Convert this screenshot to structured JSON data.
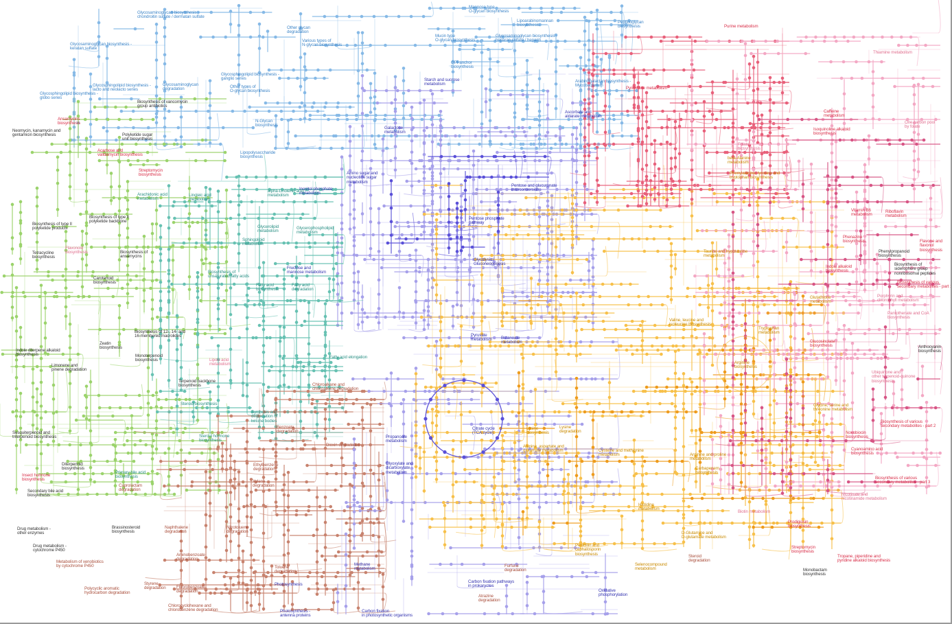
{
  "title": "",
  "colors": {
    "glycan": "#86b9e6",
    "carbohydrate": "#a6a0ea",
    "carbohydrate_core": "#5a50d8",
    "terpenoid": "#9bd36c",
    "lipid": "#67c1b2",
    "xenobiotic": "#c7826e",
    "amino_acid": "#f7c04a",
    "amino_acid_core": "#ee9b1c",
    "nucleotide": "#e8607a",
    "cofactor": "#f3a8c4",
    "secondary": "#d75585",
    "label_glycan": "#3f86c8",
    "label_carbohydrate": "#3434b0",
    "label_lipid": "#2b9085",
    "label_terpenoid": "#333333",
    "label_xenobiotic": "#a94f3c",
    "label_amino": "#c98a00",
    "label_nucleotide": "#d9304a",
    "label_cofactor": "#e0708f"
  },
  "labels": [
    {
      "text": "Glycosaminoglycan biosynthesis -\nchondroitin sulfate / dermatan sulfate",
      "group": "glycan"
    },
    {
      "text": "Glycosaminoglycan biosynthesis -\nkeratan sulfate",
      "group": "glycan"
    },
    {
      "text": "Glycosphingolipid biosynthesis -\nlacto and neolacto series",
      "group": "glycan"
    },
    {
      "text": "Glycosphingolipid biosynthesis -\nglobo series",
      "group": "glycan"
    },
    {
      "text": "Glycosaminoglycan\ndegradation",
      "group": "glycan"
    },
    {
      "text": "Glycosphingolipid biosynthesis -\nganglio series",
      "group": "glycan"
    },
    {
      "text": "Other types of\nO-glycan biosynthesis",
      "group": "glycan"
    },
    {
      "text": "Other glycan\ndegradation",
      "group": "glycan"
    },
    {
      "text": "Various types of\nN-glycan biosynthesis",
      "group": "glycan"
    },
    {
      "text": "N-Glycan\nbiosynthesis",
      "group": "glycan"
    },
    {
      "text": "Lipopolysaccharide\nbiosynthesis",
      "group": "glycan"
    },
    {
      "text": "Mannose type\nO-glycan biosynthesis",
      "group": "glycan"
    },
    {
      "text": "Lipoarabinomannan\nbiosynthesis",
      "group": "glycan"
    },
    {
      "text": "Mucin type\nO-glycan biosynthesis",
      "group": "glycan"
    },
    {
      "text": "Glycosaminoglycan biosynthesis -\nheparan sulfate / heparin",
      "group": "glycan"
    },
    {
      "text": "GPI-anchor\nbiosynthesis",
      "group": "glycan"
    },
    {
      "text": "Arabinogalactan biosynthesis -\nMycobacterium",
      "group": "glycan"
    },
    {
      "text": "Peptidoglycan\nbiosynthesis",
      "group": "glycan"
    },
    {
      "text": "Starch and sucrose\nmetabolism",
      "group": "carbohydrate"
    },
    {
      "text": "Galactose\nmetabolism",
      "group": "carbohydrate"
    },
    {
      "text": "Amino sugar and\nnucleotide sugar\nmetabolism",
      "group": "carbohydrate"
    },
    {
      "text": "Inositol phosphate\nmetabolism",
      "group": "carbohydrate"
    },
    {
      "text": "Pentose and glucuronate\ninterconversions",
      "group": "carbohydrate"
    },
    {
      "text": "Pentose phosphate\npathway",
      "group": "carbohydrate"
    },
    {
      "text": "Glycolysis /\nGluconeogenesis",
      "group": "carbohydrate"
    },
    {
      "text": "Ascorbate and\naldarate metabolism",
      "group": "carbohydrate"
    },
    {
      "text": "Fructose and\nmannose metabolism",
      "group": "carbohydrate"
    },
    {
      "text": "Citrate cycle\n(TCA cycle)",
      "group": "carbohydrate"
    },
    {
      "text": "Pyruvate\nmetabolism",
      "group": "carbohydrate"
    },
    {
      "text": "Glyoxylate and\ndicarboxylate\nmetabolism",
      "group": "carbohydrate"
    },
    {
      "text": "Propanoate\nmetabolism",
      "group": "carbohydrate"
    },
    {
      "text": "Methane\nmetabolism",
      "group": "carbohydrate"
    },
    {
      "text": "Carbon fixation pathways\nin prokaryotes",
      "group": "carbohydrate"
    },
    {
      "text": "Carbon fixation\nin photosynthetic organisms",
      "group": "carbohydrate"
    },
    {
      "text": "Butanoate\nmetabolism",
      "group": "carbohydrate"
    },
    {
      "text": "Oxidative\nphosphorylation",
      "group": "carbohydrate"
    },
    {
      "text": "Photosynthesis",
      "group": "carbohydrate"
    },
    {
      "text": "Photosynthesis -\nantenna proteins",
      "group": "carbohydrate"
    },
    {
      "text": "Biosynthesis of vancomycin\ngroup antibiotics",
      "group": "terpenoid"
    },
    {
      "text": "Ansamycins\nbiosynthesis",
      "group": "nucleotide"
    },
    {
      "text": "Neomycin, kanamycin and\ngentamicin biosynthesis",
      "group": "terpenoid"
    },
    {
      "text": "Polyketide sugar\nunit biosynthesis",
      "group": "terpenoid"
    },
    {
      "text": "Acarbose and\nvalidamycin biosynthesis",
      "group": "nucleotide"
    },
    {
      "text": "Streptomycin\nbiosynthesis",
      "group": "nucleotide"
    },
    {
      "text": "Biosynthesis of type II\npolyketide backbone",
      "group": "terpenoid"
    },
    {
      "text": "Biosynthesis of type II\npolyketide products",
      "group": "terpenoid"
    },
    {
      "text": "Tetracycline\nbiosynthesis",
      "group": "terpenoid"
    },
    {
      "text": "Flavonoid\nbiosynthesis",
      "group": "cofactor"
    },
    {
      "text": "Biosynthesis of\nansamycins",
      "group": "terpenoid"
    },
    {
      "text": "Carotenoid\nbiosynthesis",
      "group": "terpenoid"
    },
    {
      "text": "Biosynthesis of 12-, 14- and\n16-membered macrolides",
      "group": "terpenoid"
    },
    {
      "text": "Zeatin\nbiosynthesis",
      "group": "terpenoid"
    },
    {
      "text": "Monoterpenoid\nbiosynthesis",
      "group": "terpenoid"
    },
    {
      "text": "Limonene and\npinene degradation",
      "group": "terpenoid"
    },
    {
      "text": "Indole diterpene alkaloid\nbiosynthesis",
      "group": "terpenoid"
    },
    {
      "text": "Terpenoid backbone\nbiosynthesis",
      "group": "terpenoid"
    },
    {
      "text": "Sesquiterpenoid and\ntriterpenoid biosynthesis",
      "group": "terpenoid"
    },
    {
      "text": "Diterpenoid\nbiosynthesis",
      "group": "terpenoid"
    },
    {
      "text": "Insect hormone\nbiosynthesis",
      "group": "nucleotide"
    },
    {
      "text": "Secondary bile acid\nbiosynthesis",
      "group": "terpenoid"
    },
    {
      "text": "Drug metabolism -\nother enzymes",
      "group": "terpenoid"
    },
    {
      "text": "Drug metabolism -\ncytochrome P450",
      "group": "terpenoid"
    },
    {
      "text": "Brassinosteroid\nbiosynthesis",
      "group": "terpenoid"
    },
    {
      "text": "Steroid biosynthesis",
      "group": "lipid"
    },
    {
      "text": "Steroid hormone\nbiosynthesis",
      "group": "lipid"
    },
    {
      "text": "Primary bile acid\nbiosynthesis",
      "group": "lipid"
    },
    {
      "text": "Caprolactam\ndegradation",
      "group": "xenobiotic"
    },
    {
      "text": "Metabolism of xenobiotics\nby cytochrome P450",
      "group": "xenobiotic"
    },
    {
      "text": "Polycyclic aromatic\nhydrocarbon degradation",
      "group": "xenobiotic"
    },
    {
      "text": "Arachidonic acid\nmetabolism",
      "group": "lipid"
    },
    {
      "text": "Linoleic acid\nmetabolism",
      "group": "lipid"
    },
    {
      "text": "alpha-Linolenic acid\nmetabolism",
      "group": "lipid"
    },
    {
      "text": "Glycerolipid\nmetabolism",
      "group": "lipid"
    },
    {
      "text": "Glycerophospholipid\nmetabolism",
      "group": "lipid"
    },
    {
      "text": "Sphingolipid\nmetabolism",
      "group": "lipid"
    },
    {
      "text": "Biosynthesis of\nunsaturated fatty acids",
      "group": "lipid"
    },
    {
      "text": "Fatty acid\nbiosynthesis",
      "group": "lipid"
    },
    {
      "text": "Fatty acid\ndegradation",
      "group": "lipid"
    },
    {
      "text": "Fatty acid elongation",
      "group": "lipid"
    },
    {
      "text": "Lipoic acid\nmetabolism",
      "group": "cofactor"
    },
    {
      "text": "Synthesis and\ndegradation of\nketone bodies",
      "group": "lipid"
    },
    {
      "text": "Chloroalkane and\nchloroalkene degradation",
      "group": "xenobiotic"
    },
    {
      "text": "Benzoate\ndegradation",
      "group": "xenobiotic"
    },
    {
      "text": "Dioxin degradation",
      "group": "xenobiotic"
    },
    {
      "text": "Ethylbenzene\ndegradation",
      "group": "xenobiotic"
    },
    {
      "text": "Xylene\ndegradation",
      "group": "xenobiotic"
    },
    {
      "text": "Naphthalene\ndegradation",
      "group": "xenobiotic"
    },
    {
      "text": "Nitrotoluene\ndegradation",
      "group": "xenobiotic"
    },
    {
      "text": "Aminobenzoate\ndegradation",
      "group": "xenobiotic"
    },
    {
      "text": "Toluene\ndegradation",
      "group": "xenobiotic"
    },
    {
      "text": "Styrene\ndegradation",
      "group": "xenobiotic"
    },
    {
      "text": "Fluorobenzoate\ndegradation",
      "group": "xenobiotic"
    },
    {
      "text": "Chlorocyclohexane and\nchlorobenzene degradation",
      "group": "xenobiotic"
    },
    {
      "text": "Atrazine\ndegradation",
      "group": "xenobiotic"
    },
    {
      "text": "Furfural\ndegradation",
      "group": "xenobiotic"
    },
    {
      "text": "Steroid\ndegradation",
      "group": "xenobiotic"
    },
    {
      "text": "Lysine\nbiosynthesis",
      "group": "amino"
    },
    {
      "text": "Lysine\ndegradation",
      "group": "amino"
    },
    {
      "text": "Alanine, aspartate and\nglutamate metabolism",
      "group": "amino"
    },
    {
      "text": "Cysteine and methionine\nmetabolism",
      "group": "amino"
    },
    {
      "text": "Glycine, serine and\nthreonine metabolism",
      "group": "amino"
    },
    {
      "text": "Arginine and proline\nmetabolism",
      "group": "amino"
    },
    {
      "text": "Histidine\nmetabolism",
      "group": "amino"
    },
    {
      "text": "Phenylalanine, tyrosine and\ntryptophan biosynthesis",
      "group": "amino"
    },
    {
      "text": "Taurine and hypotaurine\nmetabolism",
      "group": "amino"
    },
    {
      "text": "Valine, leucine and\nisoleucine biosynthesis",
      "group": "amino"
    },
    {
      "text": "Tryptophan\nmetabolism",
      "group": "amino"
    },
    {
      "text": "Arginine\nbiosynthesis",
      "group": "amino"
    },
    {
      "text": "D-Glutamine and\nD-glutamate metabolism",
      "group": "amino"
    },
    {
      "text": "Penicillin and\ncephalosporin\nbiosynthesis",
      "group": "amino"
    },
    {
      "text": "Selenocompound\nmetabolism",
      "group": "amino"
    },
    {
      "text": "Carbapenem\nbiosynthesis",
      "group": "amino"
    },
    {
      "text": "Glutathione\nmetabolism",
      "group": "amino"
    },
    {
      "text": "beta-Alanine\nmetabolism",
      "group": "amino"
    },
    {
      "text": "Purine metabolism",
      "group": "nucleotide"
    },
    {
      "text": "Pyrimidine metabolism",
      "group": "nucleotide"
    },
    {
      "text": "Thiamine metabolism",
      "group": "cofactor"
    },
    {
      "text": "Caffeine\nmetabolism",
      "group": "nucleotide"
    },
    {
      "text": "Isoquinoline alkaloid\nbiosynthesis",
      "group": "nucleotide"
    },
    {
      "text": "Indole alkaloid\nbiosynthesis",
      "group": "nucleotide"
    },
    {
      "text": "One carbon pool\nby folate",
      "group": "cofactor"
    },
    {
      "text": "Vitamin B6\nmetabolism",
      "group": "nucleotide"
    },
    {
      "text": "Riboflavin\nmetabolism",
      "group": "nucleotide"
    },
    {
      "text": "Flavone and\nflavonol\nbiosynthesis",
      "group": "nucleotide"
    },
    {
      "text": "Phenylpropanoid\nbiosynthesis",
      "group": "terpenoid"
    },
    {
      "text": "Phenazine\nbiosynthesis",
      "group": "nucleotide"
    },
    {
      "text": "Biosynthesis of\nsiderophore group\nnonribosomal peptides",
      "group": "terpenoid"
    },
    {
      "text": "Biosynthesis of various\nsecondary metabolites - part 1",
      "group": "nucleotide"
    },
    {
      "text": "Porphyrin and\nchlorophyll metabolism",
      "group": "cofactor"
    },
    {
      "text": "Pantothenate and CoA\nbiosynthesis",
      "group": "cofactor"
    },
    {
      "text": "Glucosinolate\nbiosynthesis",
      "group": "nucleotide"
    },
    {
      "text": "Anthocyanin\nbiosynthesis",
      "group": "terpenoid"
    },
    {
      "text": "Novobiocin\nbiosynthesis",
      "group": "nucleotide"
    },
    {
      "text": "Ubiquinone and\nother terpenoid-quinone\nbiosynthesis",
      "group": "cofactor"
    },
    {
      "text": "Cyanoamino acid\nbiosynthesis",
      "group": "nucleotide"
    },
    {
      "text": "Biosynthesis of various\nsecondary metabolites - part 2",
      "group": "nucleotide"
    },
    {
      "text": "Prodigiosin\nbiosynthesis",
      "group": "nucleotide"
    },
    {
      "text": "Biosynthesis of various\nsecondary metabolites - part 3",
      "group": "nucleotide"
    },
    {
      "text": "Nicotinate and\nnicotinamide metabolism",
      "group": "cofactor"
    },
    {
      "text": "Folate\nbiosynthesis",
      "group": "cofactor"
    },
    {
      "text": "Biotin metabolism",
      "group": "cofactor"
    },
    {
      "text": "Streptomycin\nbiosynthesis",
      "group": "nucleotide"
    },
    {
      "text": "Tropane, piperidine and\npyridine alkaloid biosynthesis",
      "group": "nucleotide"
    },
    {
      "text": "Monobactam\nbiosynthesis",
      "group": "terpenoid"
    }
  ]
}
